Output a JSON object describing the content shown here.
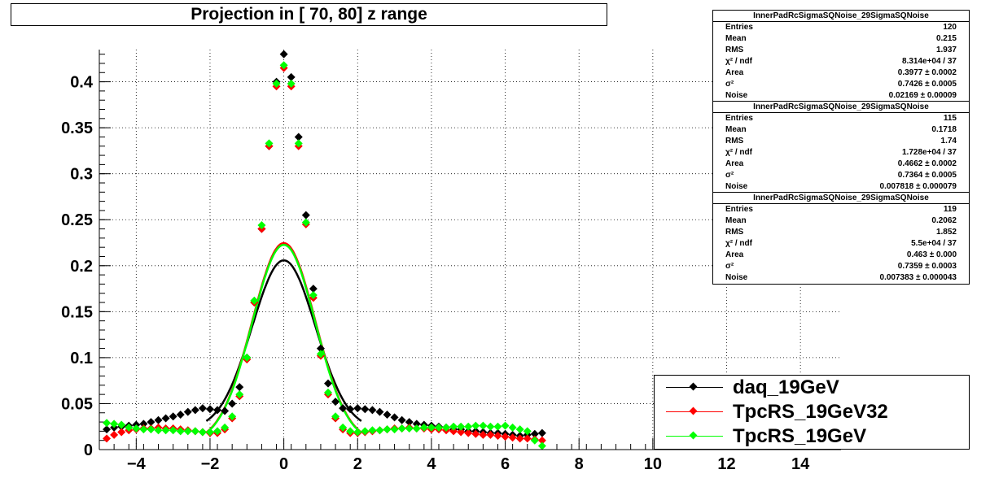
{
  "title": "Projection in [  70,  80] z range",
  "chart_data": {
    "type": "scatter",
    "xlim": [
      -5,
      15.1
    ],
    "ylim": [
      0,
      0.435
    ],
    "grid": true,
    "x_ticks": [
      "−4",
      "−2",
      "0",
      "2",
      "4",
      "6",
      "8",
      "10",
      "12",
      "14"
    ],
    "x_tick_values": [
      -4,
      -2,
      0,
      2,
      4,
      6,
      8,
      10,
      12,
      14
    ],
    "y_ticks": [
      "0",
      "0.05",
      "0.1",
      "0.15",
      "0.2",
      "0.25",
      "0.3",
      "0.35",
      "0.4"
    ],
    "y_tick_values": [
      0,
      0.05,
      0.1,
      0.15,
      0.2,
      0.25,
      0.3,
      0.35,
      0.4
    ],
    "legend_position": "bottom-right",
    "series": [
      {
        "name": "daq_19GeV",
        "color": "#000000",
        "points": [
          [
            -4.8,
            0.022
          ],
          [
            -4.6,
            0.024
          ],
          [
            -4.4,
            0.025
          ],
          [
            -4.2,
            0.026
          ],
          [
            -4.0,
            0.027
          ],
          [
            -3.8,
            0.028
          ],
          [
            -3.6,
            0.03
          ],
          [
            -3.4,
            0.032
          ],
          [
            -3.2,
            0.034
          ],
          [
            -3.0,
            0.036
          ],
          [
            -2.8,
            0.038
          ],
          [
            -2.6,
            0.041
          ],
          [
            -2.4,
            0.043
          ],
          [
            -2.2,
            0.045
          ],
          [
            -2.0,
            0.044
          ],
          [
            -1.8,
            0.043
          ],
          [
            -1.6,
            0.042
          ],
          [
            -1.4,
            0.05
          ],
          [
            -1.2,
            0.068
          ],
          [
            -1.0,
            0.1
          ],
          [
            -0.8,
            0.16
          ],
          [
            -0.6,
            0.24
          ],
          [
            -0.4,
            0.33
          ],
          [
            -0.2,
            0.4
          ],
          [
            0.0,
            0.43
          ],
          [
            0.2,
            0.405
          ],
          [
            0.4,
            0.34
          ],
          [
            0.6,
            0.255
          ],
          [
            0.8,
            0.175
          ],
          [
            1.0,
            0.11
          ],
          [
            1.2,
            0.072
          ],
          [
            1.4,
            0.052
          ],
          [
            1.6,
            0.045
          ],
          [
            1.8,
            0.044
          ],
          [
            2.0,
            0.045
          ],
          [
            2.2,
            0.044
          ],
          [
            2.4,
            0.043
          ],
          [
            2.6,
            0.041
          ],
          [
            2.8,
            0.038
          ],
          [
            3.0,
            0.035
          ],
          [
            3.2,
            0.032
          ],
          [
            3.4,
            0.03
          ],
          [
            3.6,
            0.028
          ],
          [
            3.8,
            0.027
          ],
          [
            4.0,
            0.026
          ],
          [
            4.2,
            0.025
          ],
          [
            4.4,
            0.024
          ],
          [
            4.6,
            0.022
          ],
          [
            4.8,
            0.022
          ],
          [
            5.0,
            0.02
          ],
          [
            5.2,
            0.02
          ],
          [
            5.4,
            0.019
          ],
          [
            5.6,
            0.018
          ],
          [
            5.8,
            0.018
          ],
          [
            6.0,
            0.017
          ],
          [
            6.2,
            0.016
          ],
          [
            6.4,
            0.015
          ],
          [
            6.6,
            0.016
          ],
          [
            6.8,
            0.017
          ],
          [
            7.0,
            0.018
          ]
        ]
      },
      {
        "name": "TpcRS_19GeV32",
        "color": "#ff0000",
        "points": [
          [
            -4.8,
            0.012
          ],
          [
            -4.6,
            0.016
          ],
          [
            -4.4,
            0.019
          ],
          [
            -4.2,
            0.021
          ],
          [
            -4.0,
            0.022
          ],
          [
            -3.8,
            0.023
          ],
          [
            -3.6,
            0.023
          ],
          [
            -3.4,
            0.024
          ],
          [
            -3.2,
            0.023
          ],
          [
            -3.0,
            0.023
          ],
          [
            -2.8,
            0.022
          ],
          [
            -2.6,
            0.021
          ],
          [
            -2.4,
            0.02
          ],
          [
            -2.2,
            0.019
          ],
          [
            -2.0,
            0.018
          ],
          [
            -1.8,
            0.018
          ],
          [
            -1.6,
            0.022
          ],
          [
            -1.4,
            0.034
          ],
          [
            -1.2,
            0.058
          ],
          [
            -1.0,
            0.098
          ],
          [
            -0.8,
            0.16
          ],
          [
            -0.6,
            0.24
          ],
          [
            -0.4,
            0.33
          ],
          [
            -0.2,
            0.395
          ],
          [
            0.0,
            0.415
          ],
          [
            0.2,
            0.395
          ],
          [
            0.4,
            0.33
          ],
          [
            0.6,
            0.245
          ],
          [
            0.8,
            0.165
          ],
          [
            1.0,
            0.102
          ],
          [
            1.2,
            0.06
          ],
          [
            1.4,
            0.034
          ],
          [
            1.6,
            0.022
          ],
          [
            1.8,
            0.018
          ],
          [
            2.0,
            0.018
          ],
          [
            2.2,
            0.019
          ],
          [
            2.4,
            0.02
          ],
          [
            2.6,
            0.021
          ],
          [
            2.8,
            0.022
          ],
          [
            3.0,
            0.023
          ],
          [
            3.2,
            0.023
          ],
          [
            3.4,
            0.024
          ],
          [
            3.6,
            0.023
          ],
          [
            3.8,
            0.023
          ],
          [
            4.0,
            0.022
          ],
          [
            4.2,
            0.022
          ],
          [
            4.4,
            0.021
          ],
          [
            4.6,
            0.02
          ],
          [
            4.8,
            0.019
          ],
          [
            5.0,
            0.018
          ],
          [
            5.2,
            0.017
          ],
          [
            5.4,
            0.016
          ],
          [
            5.6,
            0.016
          ],
          [
            5.8,
            0.015
          ],
          [
            6.0,
            0.014
          ],
          [
            6.2,
            0.013
          ],
          [
            6.4,
            0.012
          ],
          [
            6.6,
            0.012
          ],
          [
            6.8,
            0.011
          ],
          [
            7.0,
            0.01
          ]
        ]
      },
      {
        "name": "TpcRS_19GeV",
        "color": "#00ff00",
        "points": [
          [
            -4.8,
            0.029
          ],
          [
            -4.6,
            0.028
          ],
          [
            -4.4,
            0.027
          ],
          [
            -4.2,
            0.024
          ],
          [
            -4.0,
            0.023
          ],
          [
            -3.8,
            0.022
          ],
          [
            -3.6,
            0.022
          ],
          [
            -3.4,
            0.021
          ],
          [
            -3.2,
            0.021
          ],
          [
            -3.0,
            0.021
          ],
          [
            -2.8,
            0.02
          ],
          [
            -2.6,
            0.02
          ],
          [
            -2.4,
            0.02
          ],
          [
            -2.2,
            0.019
          ],
          [
            -2.0,
            0.019
          ],
          [
            -1.8,
            0.02
          ],
          [
            -1.6,
            0.024
          ],
          [
            -1.4,
            0.036
          ],
          [
            -1.2,
            0.06
          ],
          [
            -1.0,
            0.1
          ],
          [
            -0.8,
            0.162
          ],
          [
            -0.6,
            0.244
          ],
          [
            -0.4,
            0.333
          ],
          [
            -0.2,
            0.398
          ],
          [
            0.0,
            0.418
          ],
          [
            0.2,
            0.398
          ],
          [
            0.4,
            0.333
          ],
          [
            0.6,
            0.247
          ],
          [
            0.8,
            0.168
          ],
          [
            1.0,
            0.104
          ],
          [
            1.2,
            0.062
          ],
          [
            1.4,
            0.036
          ],
          [
            1.6,
            0.024
          ],
          [
            1.8,
            0.02
          ],
          [
            2.0,
            0.019
          ],
          [
            2.2,
            0.02
          ],
          [
            2.4,
            0.021
          ],
          [
            2.6,
            0.021
          ],
          [
            2.8,
            0.022
          ],
          [
            3.0,
            0.022
          ],
          [
            3.2,
            0.023
          ],
          [
            3.4,
            0.023
          ],
          [
            3.6,
            0.023
          ],
          [
            3.8,
            0.024
          ],
          [
            4.0,
            0.024
          ],
          [
            4.2,
            0.024
          ],
          [
            4.4,
            0.024
          ],
          [
            4.6,
            0.025
          ],
          [
            4.8,
            0.025
          ],
          [
            5.0,
            0.025
          ],
          [
            5.2,
            0.026
          ],
          [
            5.4,
            0.026
          ],
          [
            5.6,
            0.025
          ],
          [
            5.8,
            0.025
          ],
          [
            6.0,
            0.026
          ],
          [
            6.2,
            0.024
          ],
          [
            6.4,
            0.022
          ],
          [
            6.6,
            0.02
          ],
          [
            6.8,
            0.01
          ],
          [
            7.0,
            0.004
          ]
        ]
      }
    ],
    "fits": [
      {
        "color": "#000000",
        "area": 0.3977,
        "sigma2": 0.7426,
        "noise": 0.02169
      },
      {
        "color": "#ff0000",
        "area": 0.4662,
        "sigma2": 0.7364,
        "noise": 0.007818
      },
      {
        "color": "#00ff00",
        "area": 0.463,
        "sigma2": 0.7359,
        "noise": 0.007383
      }
    ]
  },
  "stats_boxes": [
    {
      "name": "InnerPadRcSigmaSQNoise_29SigmaSQNoise",
      "rows": [
        {
          "k": "Entries",
          "v": "120"
        },
        {
          "k": "Mean",
          "v": "0.215"
        },
        {
          "k": "RMS",
          "v": "1.937"
        },
        {
          "k": "χ² / ndf",
          "v": "8.314e+04 / 37"
        },
        {
          "k": "Area",
          "v": "0.3977 ± 0.0002"
        },
        {
          "k": "σ²",
          "v": "0.7426 ± 0.0005"
        },
        {
          "k": "Noise",
          "v": "0.02169 ± 0.00009"
        }
      ]
    },
    {
      "name": "InnerPadRcSigmaSQNoise_29SigmaSQNoise",
      "rows": [
        {
          "k": "Entries",
          "v": "115"
        },
        {
          "k": "Mean",
          "v": "0.1718"
        },
        {
          "k": "RMS",
          "v": "1.74"
        },
        {
          "k": "χ² / ndf",
          "v": "1.728e+04 / 37"
        },
        {
          "k": "Area",
          "v": "0.4662 ± 0.0002"
        },
        {
          "k": "σ²",
          "v": "0.7364 ± 0.0005"
        },
        {
          "k": "Noise",
          "v": "0.007818 ± 0.000079"
        }
      ]
    },
    {
      "name": "InnerPadRcSigmaSQNoise_29SigmaSQNoise",
      "rows": [
        {
          "k": "Entries",
          "v": "119"
        },
        {
          "k": "Mean",
          "v": "0.2062"
        },
        {
          "k": "RMS",
          "v": "1.852"
        },
        {
          "k": "χ² / ndf",
          "v": "5.5e+04 / 37"
        },
        {
          "k": "Area",
          "v": "0.463 ± 0.000"
        },
        {
          "k": "σ²",
          "v": "0.7359 ± 0.0003"
        },
        {
          "k": "Noise",
          "v": "0.007383 ± 0.000043"
        }
      ]
    }
  ],
  "legend": [
    {
      "label": "daq_19GeV",
      "color": "#000000"
    },
    {
      "label": "TpcRS_19GeV32",
      "color": "#ff0000"
    },
    {
      "label": "TpcRS_19GeV",
      "color": "#00ff00"
    }
  ]
}
